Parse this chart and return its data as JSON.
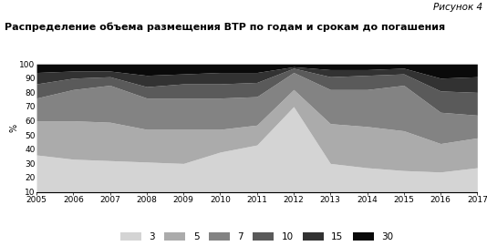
{
  "title": "Распределение объема размещения ВТР по годам и срокам до погашения",
  "figure_label": "Рисунок 4",
  "ylabel": "%",
  "years": [
    2005,
    2006,
    2007,
    2008,
    2009,
    2010,
    2011,
    2012,
    2013,
    2014,
    2015,
    2016,
    2017
  ],
  "series": {
    "3": [
      36,
      33,
      32,
      31,
      30,
      38,
      43,
      70,
      30,
      27,
      25,
      24,
      27
    ],
    "5": [
      24,
      27,
      27,
      23,
      24,
      16,
      14,
      12,
      28,
      29,
      28,
      20,
      21
    ],
    "7": [
      16,
      22,
      26,
      22,
      22,
      22,
      20,
      12,
      24,
      26,
      32,
      22,
      16
    ],
    "10": [
      10,
      8,
      6,
      8,
      10,
      10,
      10,
      3,
      9,
      10,
      8,
      15,
      16
    ],
    "15": [
      8,
      5,
      4,
      8,
      7,
      8,
      7,
      1,
      5,
      4,
      4,
      9,
      11
    ],
    "30": [
      6,
      5,
      5,
      8,
      7,
      6,
      6,
      2,
      4,
      4,
      3,
      10,
      9
    ]
  },
  "colors": {
    "3": "#d4d4d4",
    "5": "#ababab",
    "7": "#838383",
    "10": "#5a5a5a",
    "15": "#323232",
    "30": "#0a0a0a"
  },
  "ylim": [
    10,
    100
  ],
  "yticks": [
    10,
    20,
    30,
    40,
    50,
    60,
    70,
    80,
    90,
    100
  ],
  "legend_labels": [
    "3",
    "5",
    "7",
    "10",
    "15",
    "30"
  ]
}
